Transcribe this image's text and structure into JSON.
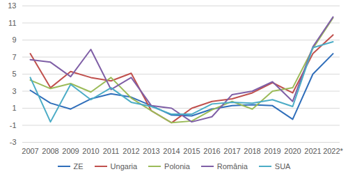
{
  "chart_data": {
    "type": "line",
    "categories": [
      "2007",
      "2008",
      "2009",
      "2010",
      "2011",
      "2012",
      "2013",
      "2014",
      "2015",
      "2016",
      "2017",
      "2018",
      "2019",
      "2020",
      "2021",
      "2022*"
    ],
    "series": [
      {
        "name": "ZE",
        "color": "#2f6eba",
        "values": [
          3.1,
          1.6,
          0.9,
          2.1,
          2.7,
          2.3,
          1.3,
          0.2,
          0.1,
          0.9,
          1.3,
          1.4,
          1.3,
          -0.3,
          5.0,
          7.4
        ]
      },
      {
        "name": "Ungaria",
        "color": "#c0504d",
        "values": [
          7.4,
          3.4,
          5.3,
          4.6,
          4.2,
          5.1,
          0.7,
          -0.7,
          1.0,
          1.8,
          2.1,
          2.8,
          4.0,
          2.8,
          7.4,
          9.6
        ]
      },
      {
        "name": "Polonia",
        "color": "#9bbb59",
        "values": [
          4.3,
          3.3,
          3.9,
          2.9,
          4.6,
          2.2,
          0.7,
          -0.7,
          -0.5,
          0.8,
          1.8,
          0.9,
          3.0,
          3.4,
          8.0,
          11.6
        ]
      },
      {
        "name": "România",
        "color": "#7f5fa6",
        "values": [
          6.7,
          6.4,
          4.7,
          7.9,
          3.2,
          4.6,
          1.3,
          1.0,
          -0.6,
          0.0,
          2.6,
          3.0,
          4.1,
          1.8,
          8.2,
          11.7
        ]
      },
      {
        "name": "SUA",
        "color": "#4bacc6",
        "values": [
          4.6,
          -0.6,
          3.8,
          2.0,
          3.4,
          1.7,
          1.2,
          0.3,
          0.3,
          1.5,
          1.7,
          1.6,
          2.0,
          1.2,
          8.1,
          8.8
        ]
      }
    ],
    "ylim": [
      -3,
      13
    ],
    "yticks": [
      -3,
      -1,
      1,
      3,
      5,
      7,
      9,
      11,
      13
    ],
    "grid": true,
    "legend": "bottom"
  }
}
